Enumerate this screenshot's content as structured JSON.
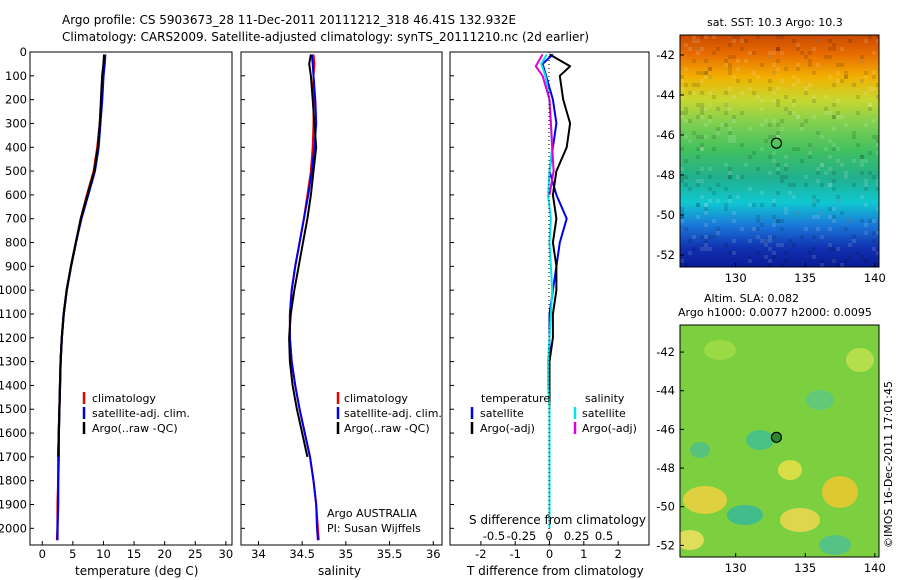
{
  "header": {
    "line1": "Argo profile: CS 5903673_28 11-Dec-2011 20111212_318 46.41S 132.932E",
    "line2": "Climatology: CARS2009. Satellite-adjusted climatology: synTS_20111210.nc (2d earlier)"
  },
  "watermark": "©IMOS 16-Dec-2011 17:01:45",
  "colors": {
    "climatology": "#ee0000",
    "satellite": "#0000ee",
    "argo": "#000000",
    "sal_satellite": "#00e5e5",
    "sal_argo": "#dd00dd"
  },
  "chart_data": [
    {
      "id": "temperature",
      "type": "line",
      "xlabel": "temperature (deg C)",
      "ylabel": "",
      "xlim": [
        -2,
        31
      ],
      "ylim": [
        2070,
        0
      ],
      "xticks": [
        0,
        5,
        10,
        15,
        20,
        25,
        30
      ],
      "yticks": [
        0,
        100,
        200,
        300,
        400,
        500,
        600,
        700,
        800,
        900,
        1000,
        1100,
        1200,
        1300,
        1400,
        1500,
        1600,
        1700,
        1800,
        1900,
        2000
      ],
      "legend": {
        "position": "lower-right",
        "entries": [
          {
            "label": "climatology",
            "color": "#ee0000"
          },
          {
            "label": "satellite-adj. clim.",
            "color": "#0000ee"
          },
          {
            "label": "Argo(..raw -QC)",
            "color": "#000000"
          }
        ]
      },
      "series": [
        {
          "name": "climatology",
          "color": "#ee0000",
          "x": [
            10.2,
            10.1,
            9.9,
            9.7,
            9.4,
            9.0,
            8.4,
            7.3,
            6.3,
            5.5,
            4.7,
            4.0,
            3.5,
            3.2,
            3.0,
            2.9,
            2.8,
            2.7,
            2.6,
            2.6,
            2.5,
            2.5,
            2.4
          ],
          "y": [
            10,
            50,
            100,
            200,
            300,
            400,
            500,
            600,
            700,
            800,
            900,
            1000,
            1100,
            1200,
            1300,
            1400,
            1500,
            1600,
            1700,
            1800,
            1900,
            2000,
            2050
          ]
        },
        {
          "name": "satellite-adj. clim.",
          "color": "#0000ee",
          "x": [
            10.3,
            10.2,
            10.0,
            9.8,
            9.5,
            9.2,
            8.6,
            7.5,
            6.4,
            5.5,
            4.7,
            4.0,
            3.5,
            3.2,
            3.0,
            2.9,
            2.8,
            2.7,
            2.7,
            2.6,
            2.6,
            2.5,
            2.5
          ],
          "y": [
            10,
            50,
            100,
            200,
            300,
            400,
            500,
            600,
            700,
            800,
            900,
            1000,
            1100,
            1200,
            1300,
            1400,
            1500,
            1600,
            1700,
            1800,
            1900,
            2000,
            2050
          ]
        },
        {
          "name": "Argo(..raw -QC)",
          "color": "#000000",
          "x": [
            10.1,
            10.0,
            9.8,
            9.6,
            9.4,
            9.1,
            8.5,
            7.4,
            6.3,
            5.5,
            4.7,
            4.0,
            3.5,
            3.2,
            3.0,
            2.9,
            2.8,
            2.7,
            2.6
          ],
          "y": [
            10,
            50,
            100,
            200,
            300,
            400,
            500,
            600,
            700,
            800,
            900,
            1000,
            1100,
            1200,
            1300,
            1400,
            1500,
            1600,
            1700
          ]
        }
      ]
    },
    {
      "id": "salinity",
      "type": "line",
      "xlabel": "salinity",
      "xlim": [
        33.8,
        36.1
      ],
      "ylim": [
        2070,
        0
      ],
      "xticks": [
        34,
        34.5,
        35,
        35.5,
        36
      ],
      "xticklabels": [
        "34",
        "34.5",
        "35",
        "35.5",
        "36"
      ],
      "legend": {
        "position": "lower-right",
        "entries": [
          {
            "label": "climatology",
            "color": "#ee0000"
          },
          {
            "label": "satellite-adj. clim.",
            "color": "#0000ee"
          },
          {
            "label": "Argo(..raw -QC)",
            "color": "#000000"
          }
        ]
      },
      "annotation": [
        "Argo AUSTRALIA",
        "PI: Susan Wijffels"
      ],
      "series": [
        {
          "name": "climatology",
          "color": "#ee0000",
          "x": [
            34.63,
            34.64,
            34.63,
            34.63,
            34.63,
            34.62,
            34.6,
            34.56,
            34.52,
            34.47,
            34.42,
            34.38,
            34.36,
            34.36,
            34.38,
            34.42,
            34.47,
            34.53,
            34.59,
            34.63,
            34.66,
            34.68,
            34.69
          ],
          "y": [
            10,
            50,
            100,
            200,
            300,
            400,
            500,
            600,
            700,
            800,
            900,
            1000,
            1100,
            1200,
            1300,
            1400,
            1500,
            1600,
            1700,
            1800,
            1900,
            2000,
            2050
          ]
        },
        {
          "name": "satellite-adj. clim.",
          "color": "#0000ee",
          "x": [
            34.61,
            34.62,
            34.63,
            34.65,
            34.66,
            34.64,
            34.61,
            34.57,
            34.52,
            34.47,
            34.42,
            34.38,
            34.36,
            34.36,
            34.38,
            34.42,
            34.47,
            34.53,
            34.59,
            34.63,
            34.66,
            34.67,
            34.68
          ],
          "y": [
            10,
            50,
            100,
            200,
            300,
            400,
            500,
            600,
            700,
            800,
            900,
            1000,
            1100,
            1200,
            1300,
            1400,
            1500,
            1600,
            1700,
            1800,
            1900,
            2000,
            2050
          ]
        },
        {
          "name": "Argo(..raw -QC)",
          "color": "#000000",
          "x": [
            34.6,
            34.58,
            34.6,
            34.62,
            34.64,
            34.66,
            34.63,
            34.6,
            34.56,
            34.51,
            34.46,
            34.41,
            34.37,
            34.35,
            34.36,
            34.39,
            34.44,
            34.5,
            34.56
          ],
          "y": [
            10,
            50,
            100,
            200,
            300,
            400,
            500,
            600,
            700,
            800,
            900,
            1000,
            1100,
            1200,
            1300,
            1400,
            1500,
            1600,
            1700
          ]
        }
      ]
    },
    {
      "id": "difference",
      "type": "line",
      "xlabel": "T difference from climatology",
      "xlabel2": "S difference from climatology",
      "xlim": [
        -2.9,
        2.9
      ],
      "ylim": [
        2070,
        0
      ],
      "xticks": [
        -2,
        -1,
        0,
        1,
        2
      ],
      "xticklabels": [
        "-2",
        "-1",
        "0",
        "1",
        "2"
      ],
      "xticks2": [
        -0.5,
        -0.25,
        0,
        0.25,
        0.5
      ],
      "xticklabels2": [
        "-0.5",
        "-0.25",
        "0",
        "0.25",
        "0.5"
      ],
      "legend": {
        "temperature_title": "temperature",
        "salinity_title": "salinity",
        "entries": [
          {
            "group": "temperature",
            "label": "satellite",
            "color": "#0000ee"
          },
          {
            "group": "temperature",
            "label": "Argo(-adj)",
            "color": "#000000"
          },
          {
            "group": "salinity",
            "label": "satellite",
            "color": "#00e5e5"
          },
          {
            "group": "salinity",
            "label": "Argo(-adj)",
            "color": "#dd00dd"
          }
        ]
      },
      "series": [
        {
          "name": "T satellite",
          "color": "#0000ee",
          "x": [
            0.1,
            -0.2,
            -0.1,
            0.1,
            0.2,
            0.1,
            0.0,
            0.2,
            0.5,
            0.3,
            0.2,
            0.1,
            0.0,
            0.0,
            0.0,
            0.0,
            0.0,
            0.0,
            0.0,
            0.0,
            0.0,
            0.0
          ],
          "y": [
            10,
            50,
            100,
            200,
            300,
            400,
            500,
            600,
            700,
            800,
            900,
            1000,
            1100,
            1200,
            1300,
            1400,
            1500,
            1600,
            1700,
            1800,
            1900,
            2000
          ]
        },
        {
          "name": "T Argo(-adj)",
          "color": "#000000",
          "x": [
            0.0,
            0.6,
            0.3,
            0.4,
            0.6,
            0.5,
            0.2,
            0.1,
            0.2,
            0.1,
            0.2,
            0.2,
            0.1,
            0.1,
            0.0,
            0.0,
            0.0
          ],
          "y": [
            10,
            60,
            100,
            200,
            300,
            400,
            500,
            600,
            700,
            800,
            900,
            1000,
            1100,
            1200,
            1300,
            1400,
            1500
          ]
        },
        {
          "name": "S satellite",
          "color": "#00e5e5",
          "x": [
            -0.02,
            -0.06,
            -0.03,
            0.0,
            0.01,
            0.02,
            0.0,
            -0.01,
            0.01,
            0.0,
            0.01,
            0.02,
            0.01,
            0.0,
            -0.01,
            -0.01,
            0.0,
            0.0,
            0.0,
            0.0,
            0.0,
            0.0
          ],
          "y": [
            10,
            50,
            100,
            200,
            300,
            400,
            500,
            600,
            700,
            800,
            900,
            1000,
            1100,
            1200,
            1300,
            1400,
            1500,
            1600,
            1700,
            1800,
            1900,
            2000
          ]
        },
        {
          "name": "S Argo(-adj)",
          "color": "#dd00dd",
          "x": [
            -0.05,
            -0.1,
            -0.05,
            0.0,
            0.01,
            0.02,
            0.03,
            0.0
          ],
          "y": [
            10,
            60,
            100,
            200,
            300,
            400,
            500,
            600
          ]
        }
      ]
    },
    {
      "id": "sst_map",
      "type": "heatmap",
      "title": "sat. SST: 10.3  Argo: 10.3",
      "xlim": [
        126,
        140.3
      ],
      "ylim": [
        -52.6,
        -41
      ],
      "xticks": [
        130,
        135,
        140
      ],
      "yticks": [
        -42,
        -44,
        -46,
        -48,
        -50,
        -52
      ],
      "marker": {
        "lon": 132.93,
        "lat": -46.41
      }
    },
    {
      "id": "sla_map",
      "type": "heatmap",
      "title": "Altim. SLA: 0.082",
      "subtitle": "Argo h1000: 0.0077 h2000: 0.0095",
      "xlim": [
        126,
        140.3
      ],
      "ylim": [
        -52.6,
        -40.6
      ],
      "xticks": [
        130,
        135,
        140
      ],
      "yticks": [
        -42,
        -44,
        -46,
        -48,
        -50,
        -52
      ],
      "marker": {
        "lon": 132.93,
        "lat": -46.41
      }
    }
  ]
}
